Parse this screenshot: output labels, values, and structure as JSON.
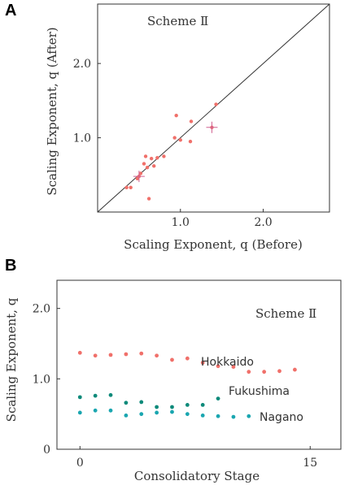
{
  "panels": {
    "a_label": "A",
    "b_label": "B"
  },
  "chart_data": [
    {
      "type": "scatter",
      "scheme": "Scheme Ⅱ",
      "xlabel": "Scaling Exponent, q (Before)",
      "ylabel": "Scaling Exponent, q (After)",
      "xlim": [
        0,
        2.8
      ],
      "ylim": [
        0,
        2.8
      ],
      "xticks": [
        1.0,
        2.0
      ],
      "xtick_labels": [
        "1.0",
        "2.0"
      ],
      "yticks": [
        1.0,
        2.0
      ],
      "ytick_labels": [
        "1.0",
        "2.0"
      ],
      "diagonal": true,
      "color": "#f0706a",
      "points": [
        {
          "x": 0.35,
          "y": 0.33
        },
        {
          "x": 0.4,
          "y": 0.33
        },
        {
          "x": 0.48,
          "y": 0.45
        },
        {
          "x": 0.5,
          "y": 0.48
        },
        {
          "x": 0.52,
          "y": 0.52
        },
        {
          "x": 0.56,
          "y": 0.65
        },
        {
          "x": 0.58,
          "y": 0.75
        },
        {
          "x": 0.6,
          "y": 0.6
        },
        {
          "x": 0.62,
          "y": 0.18
        },
        {
          "x": 0.65,
          "y": 0.72
        },
        {
          "x": 0.68,
          "y": 0.62
        },
        {
          "x": 0.72,
          "y": 0.73
        },
        {
          "x": 0.8,
          "y": 0.75
        },
        {
          "x": 0.93,
          "y": 1.0
        },
        {
          "x": 0.95,
          "y": 1.3
        },
        {
          "x": 1.0,
          "y": 0.97
        },
        {
          "x": 1.12,
          "y": 0.95
        },
        {
          "x": 1.13,
          "y": 1.22
        },
        {
          "x": 1.38,
          "y": 1.14
        },
        {
          "x": 1.43,
          "y": 1.45
        }
      ],
      "error_points": [
        {
          "x": 0.5,
          "y": 0.48
        },
        {
          "x": 1.38,
          "y": 1.14
        }
      ]
    },
    {
      "type": "scatter",
      "scheme": "Scheme Ⅱ",
      "xlabel": "Consolidatory Stage",
      "ylabel": "Scaling Exponent, q",
      "xlim": [
        -1.5,
        17
      ],
      "ylim": [
        0,
        2.4
      ],
      "xticks": [
        0,
        15
      ],
      "xtick_labels": [
        "0",
        "15"
      ],
      "yticks": [
        0,
        1.0,
        2.0
      ],
      "ytick_labels": [
        "0",
        "1.0",
        "2.0"
      ],
      "series": [
        {
          "name": "Hokkaido",
          "color": "#f0706a",
          "x": [
            0,
            1,
            2,
            3,
            4,
            5,
            6,
            7,
            8,
            9,
            10,
            11,
            12,
            13,
            14
          ],
          "y": [
            1.37,
            1.33,
            1.34,
            1.35,
            1.36,
            1.33,
            1.27,
            1.29,
            1.23,
            1.18,
            1.17,
            1.1,
            1.1,
            1.11,
            1.13
          ]
        },
        {
          "name": "Fukushima",
          "color": "#0e8a7a",
          "x": [
            0,
            1,
            2,
            3,
            4,
            5,
            6,
            7,
            8,
            9
          ],
          "y": [
            0.74,
            0.76,
            0.77,
            0.66,
            0.67,
            0.6,
            0.6,
            0.63,
            0.63,
            0.72
          ]
        },
        {
          "name": "Nagano",
          "color": "#1aa6b0",
          "x": [
            0,
            1,
            2,
            3,
            4,
            5,
            6,
            7,
            8,
            9,
            10,
            11
          ],
          "y": [
            0.52,
            0.55,
            0.55,
            0.48,
            0.5,
            0.52,
            0.53,
            0.5,
            0.48,
            0.47,
            0.46,
            0.47
          ]
        }
      ]
    }
  ]
}
